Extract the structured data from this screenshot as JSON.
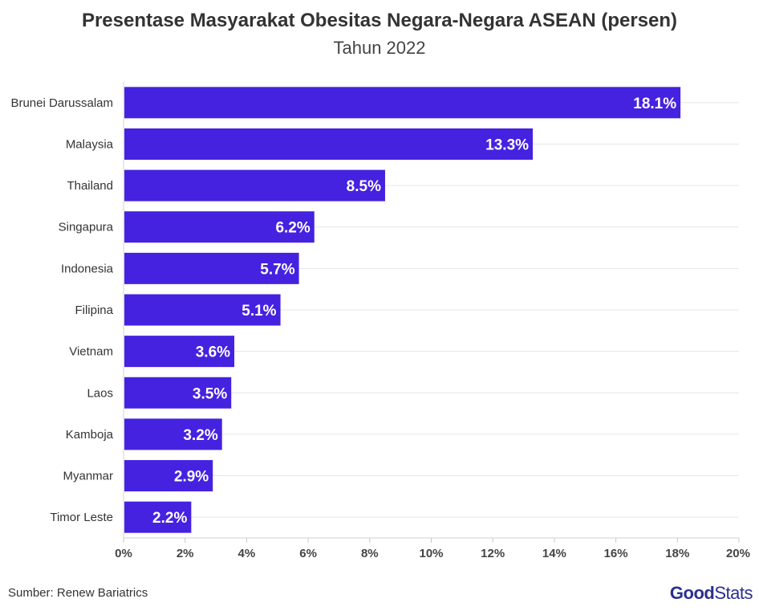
{
  "chart_data": {
    "type": "bar",
    "orientation": "horizontal",
    "title": "Presentase Masyarakat Obesitas Negara-Negara ASEAN (persen)",
    "subtitle": "Tahun 2022",
    "categories": [
      "Brunei Darussalam",
      "Malaysia",
      "Thailand",
      "Singapura",
      "Indonesia",
      "Filipina",
      "Vietnam",
      "Laos",
      "Kamboja",
      "Myanmar",
      "Timor Leste"
    ],
    "values": [
      18.1,
      13.3,
      8.5,
      6.2,
      5.7,
      5.1,
      3.6,
      3.5,
      3.2,
      2.9,
      2.2
    ],
    "value_labels": [
      "18.1%",
      "13.3%",
      "8.5%",
      "6.2%",
      "5.7%",
      "5.1%",
      "3.6%",
      "3.5%",
      "3.2%",
      "2.9%",
      "2.2%"
    ],
    "xlim": [
      0,
      20
    ],
    "x_ticks": [
      0,
      2,
      4,
      6,
      8,
      10,
      12,
      14,
      16,
      18,
      20
    ],
    "x_tick_labels": [
      "0%",
      "2%",
      "4%",
      "6%",
      "8%",
      "10%",
      "12%",
      "14%",
      "16%",
      "18%",
      "20%"
    ],
    "grid": true,
    "bar_color": "#4422e0"
  },
  "footer": {
    "source": "Sumber: Renew Bariatrics",
    "logo_good": "Good",
    "logo_stats": "Stats"
  }
}
